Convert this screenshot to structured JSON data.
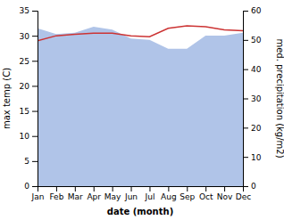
{
  "chart_data": {
    "type": "line",
    "categories": [
      "Jan",
      "Feb",
      "Mar",
      "Apr",
      "May",
      "Jun",
      "Jul",
      "Aug",
      "Sep",
      "Oct",
      "Nov",
      "Dec"
    ],
    "xlabel": "date (month)",
    "ylabel": "max temp (C)",
    "y2label": "med. precipitation (kg/m2)",
    "ylim": [
      0,
      35
    ],
    "yticks": [
      0,
      5,
      10,
      15,
      20,
      25,
      30,
      35
    ],
    "y2lim": [
      0,
      60
    ],
    "y2ticks": [
      0,
      10,
      20,
      30,
      40,
      50,
      60
    ],
    "grid": false,
    "series": [
      {
        "type": "area",
        "axis": "y2",
        "color": "#b0c4e8",
        "values": [
          54.0,
          52.0,
          52.5,
          54.5,
          53.5,
          50.5,
          50.0,
          47.0,
          47.0,
          51.5,
          51.5,
          52.5
        ]
      },
      {
        "type": "line",
        "color": "#cc3333",
        "values": [
          29.0,
          30.0,
          30.3,
          30.5,
          30.5,
          30.0,
          29.8,
          31.5,
          32.0,
          31.8,
          31.2,
          31.0
        ]
      }
    ]
  }
}
